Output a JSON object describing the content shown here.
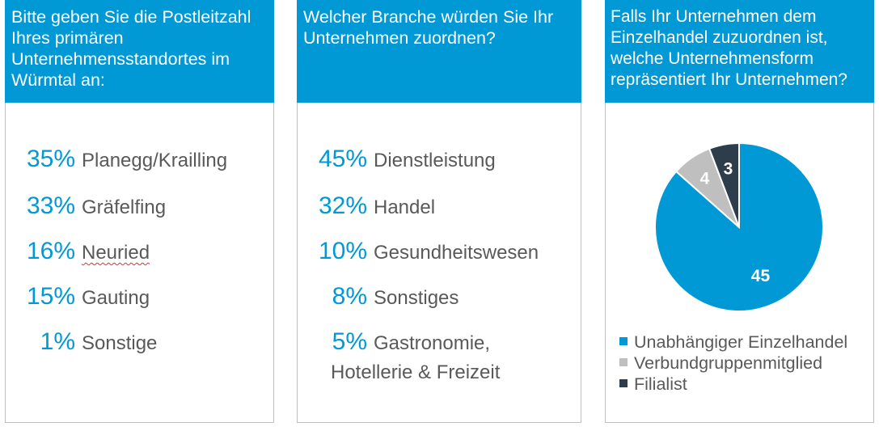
{
  "panel1": {
    "question": "Bitte geben Sie die Postleitzahl Ihres primären Unternehmensstandortes im Würmtal an:",
    "items": [
      {
        "pct": "35%",
        "label": "Planegg/Krailling"
      },
      {
        "pct": "33%",
        "label": "Gräfelfing"
      },
      {
        "pct": "16%",
        "label": "Neuried"
      },
      {
        "pct": "15%",
        "label": "Gauting"
      },
      {
        "pct": "1%",
        "label": "Sonstige"
      }
    ]
  },
  "panel2": {
    "question": "Welcher Branche würden Sie Ihr Unternehmen zuordnen?",
    "items": [
      {
        "pct": "45%",
        "label": "Dienstleistung"
      },
      {
        "pct": "32%",
        "label": "Handel"
      },
      {
        "pct": "10%",
        "label": "Gesundheitswesen"
      },
      {
        "pct": "8%",
        "label": "Sonstiges"
      },
      {
        "pct": "5%",
        "label": "Gastronomie,",
        "label2": "Hotellerie & Freizeit"
      }
    ]
  },
  "panel3": {
    "question": "Falls Ihr Unternehmen dem Einzelhandel zuzuordnen ist, welche Unternehmensform repräsentiert Ihr Unternehmen?"
  },
  "chart_data": {
    "type": "pie",
    "title": "",
    "slices": [
      {
        "name": "Unabhängiger Einzelhandel",
        "value": 45,
        "label": "45",
        "color": "#0099d6"
      },
      {
        "name": "Verbundgruppenmitglied",
        "value": 4,
        "label": "4",
        "color": "#bfbfbf"
      },
      {
        "name": "Filialist",
        "value": 3,
        "label": "3",
        "color": "#2e3d4b"
      }
    ],
    "legend_position": "bottom-left"
  }
}
